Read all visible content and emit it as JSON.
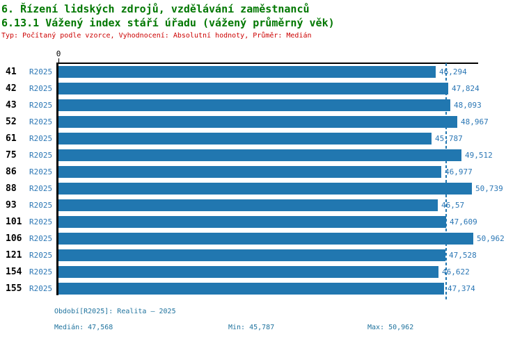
{
  "header": {
    "title_line1": "6. Řízení lidských zdrojů, vzdělávání zaměstnanců",
    "title_line2": "6.13.1 Vážený index stáří úřadu (vážený průměrný věk)",
    "subtitle": "Typ: Počítaný podle vzorce, Vyhodnocení: Absolutní hodnoty, Průměr: Medián"
  },
  "chart_data": {
    "type": "bar",
    "orientation": "horizontal",
    "title": "6.13.1 Vážený index stáří úřadu (vážený průměrný věk)",
    "series_label": "R2025",
    "categories": [
      "41",
      "42",
      "43",
      "52",
      "61",
      "75",
      "86",
      "88",
      "93",
      "101",
      "106",
      "121",
      "154",
      "155"
    ],
    "values": [
      46.294,
      47.824,
      48.093,
      48.967,
      45.787,
      49.512,
      46.977,
      50.739,
      46.57,
      47.609,
      50.962,
      47.528,
      46.622,
      47.374
    ],
    "value_labels": [
      "46,294",
      "47,824",
      "48,093",
      "48,967",
      "45,787",
      "49,512",
      "46,977",
      "50,739",
      "46,57",
      "47,609",
      "50,962",
      "47,528",
      "46,622",
      "47,374"
    ],
    "period_labels": [
      "R2025",
      "R2025",
      "R2025",
      "R2025",
      "R2025",
      "R2025",
      "R2025",
      "R2025",
      "R2025",
      "R2025",
      "R2025",
      "R2025",
      "R2025",
      "R2025"
    ],
    "median": 47.568,
    "min": 45.787,
    "max": 50.962,
    "xlabel": "",
    "ylabel": "",
    "x_zero_tick_label": "0",
    "xlim": [
      0,
      51.45
    ],
    "grid": false,
    "legend_position": "none",
    "median_line": true
  },
  "footer": {
    "period_line": "Období[R2025]: Realita – 2025",
    "median_label": "Medián: 47,568",
    "min_label": "Min: 45,787",
    "max_label": "Max: 50,962"
  },
  "colors": {
    "title_green": "#007700",
    "subtitle_red": "#CC0000",
    "bar_blue": "#2177B0",
    "label_blue": "#2B77B5",
    "footer_blue": "#20739E",
    "axis_black": "#000000",
    "median_line_blue": "#2177B0"
  }
}
